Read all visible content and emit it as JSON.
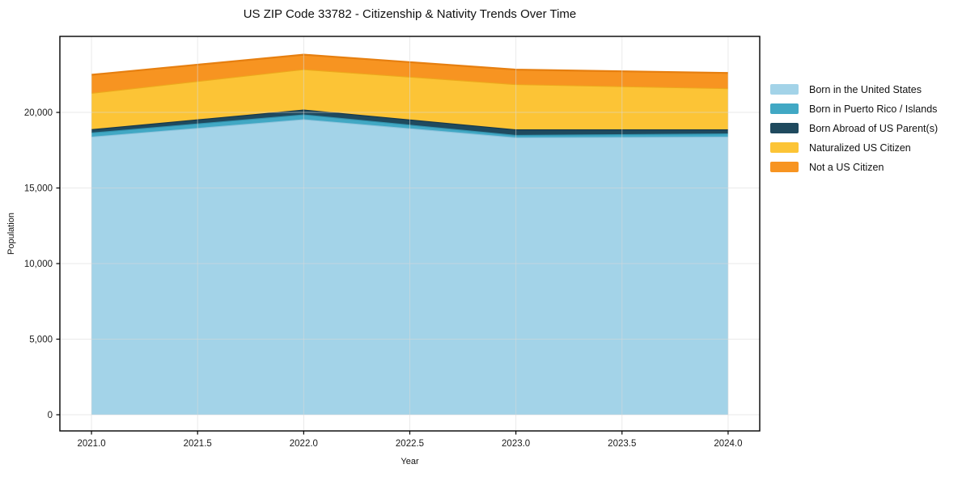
{
  "figure": {
    "title": "US ZIP Code 33782 - Citizenship & Nativity Trends Over Time"
  },
  "chart_data": {
    "type": "area",
    "stacked": true,
    "title": "US ZIP Code 33782 - Citizenship & Nativity Trends Over Time",
    "xlabel": "Year",
    "ylabel": "Population",
    "x": [
      2021,
      2022,
      2023,
      2024
    ],
    "series": [
      {
        "name": "Born in the United States",
        "values": [
          18400,
          19550,
          18350,
          18400
        ],
        "color": "#a3d3e8",
        "edge": "#8cc3dc"
      },
      {
        "name": "Born in Puerto Rico / Islands",
        "values": [
          270,
          320,
          160,
          210
        ],
        "color": "#41a8c4",
        "edge": "#3292ad"
      },
      {
        "name": "Born Abroad of US Parent(s)",
        "values": [
          220,
          320,
          370,
          270
        ],
        "color": "#1f4a5e",
        "edge": "#16374a"
      },
      {
        "name": "Naturalized US Citizen",
        "values": [
          2400,
          2670,
          2990,
          2720
        ],
        "color": "#fcc436",
        "edge": "#eda81c"
      },
      {
        "name": "Not a US Citizen",
        "values": [
          1200,
          960,
          960,
          1010
        ],
        "color": "#f79421",
        "edge": "#e67f10"
      }
    ],
    "xticks": [
      2021.0,
      2021.5,
      2022.0,
      2022.5,
      2023.0,
      2023.5,
      2024.0
    ],
    "xtick_labels": [
      "2021.0",
      "2021.5",
      "2022.0",
      "2022.5",
      "2023.0",
      "2023.5",
      "2024.0"
    ],
    "yticks": [
      0,
      5000,
      10000,
      15000,
      20000
    ],
    "ytick_labels": [
      "0",
      "5,000",
      "10,000",
      "15,000",
      "20,000"
    ],
    "xlim": [
      2020.851,
      2024.149
    ],
    "ylim": [
      -1070,
      25030
    ],
    "grid": true,
    "grid_color": "#d9d9d9",
    "spine_color": "#000000",
    "legend_position": "right"
  }
}
